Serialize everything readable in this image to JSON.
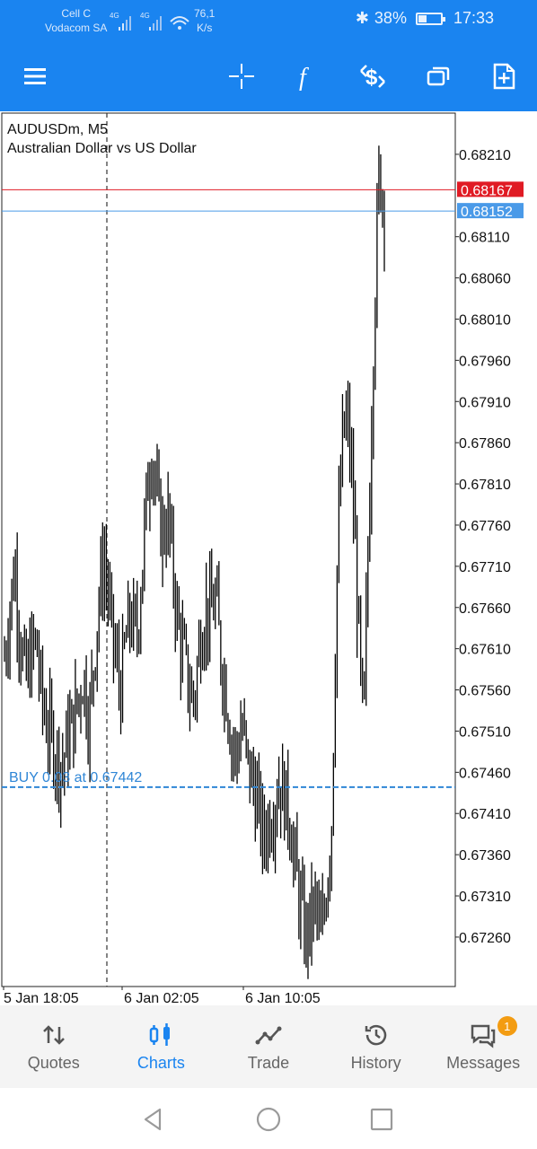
{
  "status_bar": {
    "carrier_1": "Cell C",
    "carrier_2": "Vodacom SA",
    "net_1": "4G",
    "net_2": "4G",
    "speed_value": "76,1",
    "speed_unit": "K/s",
    "battery": "38%",
    "battery_level": 0.38,
    "time": "17:33"
  },
  "toolbar": {
    "icons": [
      "menu-icon",
      "crosshair-icon",
      "indicators-icon",
      "new-order-icon",
      "windows-icon",
      "add-object-icon"
    ]
  },
  "chart": {
    "symbol_line": "AUDUSDm, M5",
    "description": "Australian Dollar vs US Dollar",
    "y_ticks": [
      "0.68210",
      "0.68110",
      "0.68060",
      "0.68010",
      "0.67960",
      "0.67910",
      "0.67860",
      "0.67810",
      "0.67760",
      "0.67710",
      "0.67660",
      "0.67610",
      "0.67560",
      "0.67510",
      "0.67460",
      "0.67410",
      "0.67360",
      "0.67310",
      "0.67260"
    ],
    "x_ticks": [
      "5 Jan 18:05",
      "6 Jan 02:05",
      "6 Jan 10:05"
    ],
    "ask_label": "0.68167",
    "bid_label": "0.68152",
    "order_line_label": "BUY 0.03 at 0.67442",
    "colors": {
      "ask": "#e01b24",
      "bid": "#4a9ae8",
      "order": "#2f86d6",
      "bars": "#000000"
    }
  },
  "chart_data": {
    "type": "ohlc",
    "title": "AUDUSDm, M5",
    "subtitle": "Australian Dollar vs US Dollar",
    "x_categories": [
      "5 Jan 18:05",
      "6 Jan 02:05",
      "6 Jan 10:05"
    ],
    "ylim": [
      0.672,
      0.6826
    ],
    "ask": 0.68167,
    "bid": 0.68152,
    "order_level": 0.67442,
    "approx_close_series": [
      0.676,
      0.6766,
      0.6771,
      0.6762,
      0.6757,
      0.676,
      0.6762,
      0.6755,
      0.6752,
      0.675,
      0.6748,
      0.6747,
      0.675,
      0.6752,
      0.6755,
      0.6758,
      0.6752,
      0.676,
      0.6768,
      0.6772,
      0.6765,
      0.676,
      0.6756,
      0.6762,
      0.6765,
      0.6762,
      0.677,
      0.678,
      0.6786,
      0.6778,
      0.6775,
      0.6777,
      0.677,
      0.6763,
      0.676,
      0.6756,
      0.6755,
      0.6762,
      0.6766,
      0.6765,
      0.6767,
      0.676,
      0.6756,
      0.675,
      0.6748,
      0.6752,
      0.6747,
      0.6745,
      0.6742,
      0.6738,
      0.674,
      0.6742,
      0.6745,
      0.6743,
      0.6741,
      0.6735,
      0.673,
      0.6726,
      0.6728,
      0.673,
      0.6725,
      0.6732,
      0.674,
      0.677,
      0.6786,
      0.6789,
      0.678,
      0.6765,
      0.675,
      0.6775,
      0.68,
      0.6819,
      0.6815
    ]
  },
  "bottom_nav": {
    "items": [
      {
        "label": "Quotes",
        "icon": "quotes-icon",
        "active": false
      },
      {
        "label": "Charts",
        "icon": "charts-icon",
        "active": true
      },
      {
        "label": "Trade",
        "icon": "trade-icon",
        "active": false
      },
      {
        "label": "History",
        "icon": "history-icon",
        "active": false
      },
      {
        "label": "Messages",
        "icon": "messages-icon",
        "active": false
      }
    ],
    "messages_badge": "1"
  },
  "system_nav": {
    "icons": [
      "back-icon",
      "home-icon",
      "recents-icon"
    ]
  }
}
